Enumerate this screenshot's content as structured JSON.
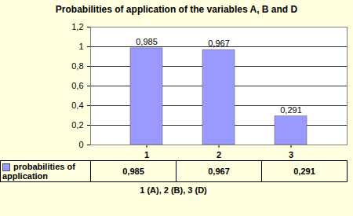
{
  "chart_data": {
    "type": "bar",
    "title": "Probabilities of application of the variables A, B and D",
    "xlabel": "1 (A), 2 (B), 3 (D)",
    "categories": [
      "1",
      "2",
      "3"
    ],
    "series": [
      {
        "name": "probabilities of application",
        "color": "#9999ff",
        "values": [
          0.985,
          0.967,
          0.291
        ],
        "value_labels": [
          "0,985",
          "0,967",
          "0,291"
        ]
      }
    ],
    "ylim": [
      0,
      1.2
    ],
    "yticks": [
      0,
      {
        "value": 0.2,
        "label": "0,2"
      },
      {
        "value": 0.4,
        "label": "0,4"
      },
      {
        "value": 0.6,
        "label": "0,6"
      },
      {
        "value": 0.8,
        "label": "0,8"
      },
      1,
      {
        "value": 1.2,
        "label": "1,2"
      }
    ],
    "grid": true,
    "data_labels": true,
    "legend": "bottom"
  }
}
